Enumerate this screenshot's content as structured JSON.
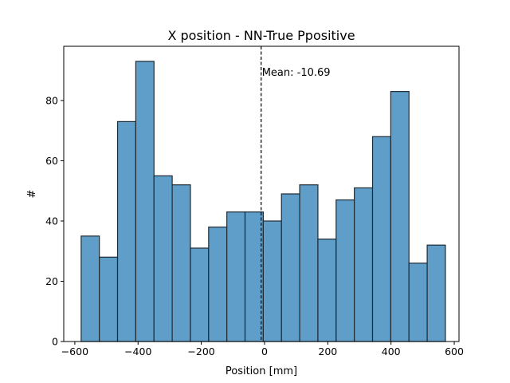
{
  "chart_data": {
    "type": "bar",
    "title": "X position - NN-True Ppositive",
    "xlabel": "Position [mm]",
    "ylabel": "#",
    "xlim": [
      -635,
      615
    ],
    "ylim": [
      0,
      98
    ],
    "xticks": [
      -600,
      -400,
      -200,
      0,
      200,
      400,
      600
    ],
    "xtick_labels": [
      "−600",
      "−400",
      "−200",
      "0",
      "200",
      "400",
      "600"
    ],
    "yticks": [
      0,
      20,
      40,
      60,
      80
    ],
    "ytick_labels": [
      "0",
      "20",
      "40",
      "60",
      "80"
    ],
    "bin_edges": [
      -580,
      -522.4,
      -464.8,
      -407.2,
      -349.6,
      -292,
      -234.4,
      -176.8,
      -119.2,
      -61.6,
      -4,
      53.6,
      111.2,
      168.8,
      226.4,
      284,
      341.6,
      399.2,
      456.8,
      514.4,
      572
    ],
    "values": [
      35,
      28,
      73,
      93,
      55,
      52,
      31,
      38,
      43,
      43,
      40,
      49,
      52,
      34,
      47,
      51,
      68,
      83,
      26,
      32
    ],
    "bar_color": "#5f9ec9",
    "edge_color": "#1f2a33",
    "mean": {
      "value": -10.69,
      "label": "Mean: -10.69"
    },
    "grid": false
  }
}
